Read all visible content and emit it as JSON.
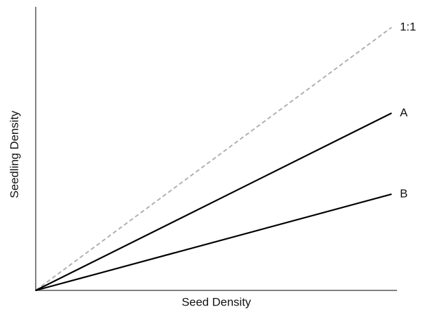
{
  "chart_data": {
    "type": "line",
    "x_label": "Seed Density",
    "y_label": "Seedling Density",
    "x": [
      0,
      1
    ],
    "xlim": [
      0,
      1.015
    ],
    "ylim": [
      0,
      1.078
    ],
    "series": [
      {
        "name": "1:1",
        "color": "#b0b0b0",
        "dashed": true,
        "values": [
          0,
          1
        ]
      },
      {
        "name": "A",
        "color": "#000000",
        "dashed": false,
        "values": [
          0,
          0.674
        ]
      },
      {
        "name": "B",
        "color": "#000000",
        "dashed": false,
        "values": [
          0,
          0.366
        ]
      }
    ]
  }
}
